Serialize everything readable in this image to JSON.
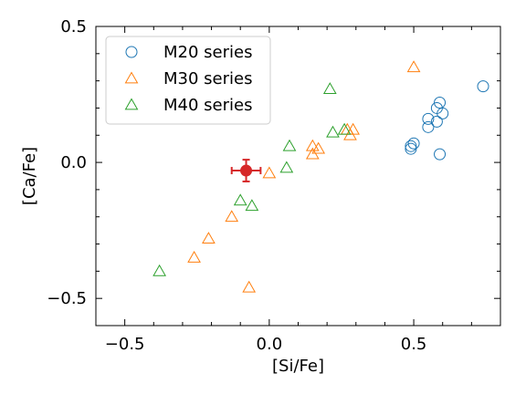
{
  "chart_data": {
    "type": "scatter",
    "xlabel": "[Si/Fe]",
    "ylabel": "[Ca/Fe]",
    "xlim": [
      -0.6,
      0.8
    ],
    "ylim": [
      -0.6,
      0.5
    ],
    "xticks": [
      {
        "value": -0.5,
        "label": "−0.5"
      },
      {
        "value": 0.0,
        "label": "0.0"
      },
      {
        "value": 0.5,
        "label": "0.5"
      }
    ],
    "yticks": [
      {
        "value": -0.5,
        "label": "−0.5"
      },
      {
        "value": 0.0,
        "label": "0.0"
      },
      {
        "value": 0.5,
        "label": "0.5"
      }
    ],
    "legend_position": "top-left",
    "series": [
      {
        "name": "M20 series",
        "marker": "circle",
        "color": "#1f77b4",
        "points": [
          {
            "x": 0.74,
            "y": 0.28
          },
          {
            "x": 0.59,
            "y": 0.22
          },
          {
            "x": 0.58,
            "y": 0.2
          },
          {
            "x": 0.6,
            "y": 0.18
          },
          {
            "x": 0.55,
            "y": 0.16
          },
          {
            "x": 0.58,
            "y": 0.15
          },
          {
            "x": 0.55,
            "y": 0.13
          },
          {
            "x": 0.5,
            "y": 0.07
          },
          {
            "x": 0.49,
            "y": 0.06
          },
          {
            "x": 0.49,
            "y": 0.05
          },
          {
            "x": 0.59,
            "y": 0.03
          }
        ]
      },
      {
        "name": "M30 series",
        "marker": "triangle",
        "color": "#ff7f0e",
        "points": [
          {
            "x": 0.5,
            "y": 0.35
          },
          {
            "x": 0.27,
            "y": 0.12
          },
          {
            "x": 0.29,
            "y": 0.12
          },
          {
            "x": 0.28,
            "y": 0.1
          },
          {
            "x": 0.15,
            "y": 0.06
          },
          {
            "x": 0.17,
            "y": 0.05
          },
          {
            "x": 0.15,
            "y": 0.03
          },
          {
            "x": 0.0,
            "y": -0.04
          },
          {
            "x": -0.13,
            "y": -0.2
          },
          {
            "x": -0.21,
            "y": -0.28
          },
          {
            "x": -0.26,
            "y": -0.35
          },
          {
            "x": -0.07,
            "y": -0.46
          }
        ]
      },
      {
        "name": "M40 series",
        "marker": "triangle",
        "color": "#2ca02c",
        "points": [
          {
            "x": 0.21,
            "y": 0.27
          },
          {
            "x": 0.26,
            "y": 0.12
          },
          {
            "x": 0.22,
            "y": 0.11
          },
          {
            "x": 0.07,
            "y": 0.06
          },
          {
            "x": 0.06,
            "y": -0.02
          },
          {
            "x": -0.1,
            "y": -0.14
          },
          {
            "x": -0.06,
            "y": -0.16
          },
          {
            "x": -0.38,
            "y": -0.4
          }
        ]
      }
    ],
    "highlight": {
      "x": -0.08,
      "y": -0.03,
      "xerr": 0.05,
      "yerr": 0.04,
      "color": "#d62728"
    }
  }
}
